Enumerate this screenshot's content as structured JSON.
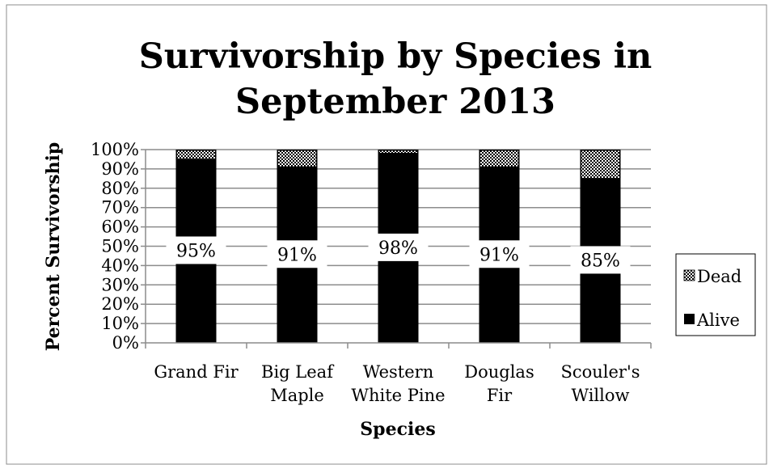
{
  "chart_data": {
    "type": "bar",
    "stacked": true,
    "title": [
      "Survivorship by Species in",
      "September 2013"
    ],
    "xlabel": "Species",
    "ylabel": "Percent Survivorship",
    "ylim": [
      0,
      100
    ],
    "y_ticks": [
      0,
      10,
      20,
      30,
      40,
      50,
      60,
      70,
      80,
      90,
      100
    ],
    "y_tick_labels": [
      "0%",
      "10%",
      "20%",
      "30%",
      "40%",
      "50%",
      "60%",
      "70%",
      "80%",
      "90%",
      "100%"
    ],
    "grid": true,
    "legend_position": "right",
    "categories": [
      [
        "Grand Fir"
      ],
      [
        "Big Leaf",
        "Maple"
      ],
      [
        "Western",
        "White Pine"
      ],
      [
        "Douglas",
        "Fir"
      ],
      [
        "Scouler's",
        "Willow"
      ]
    ],
    "series": [
      {
        "name": "Alive",
        "values": [
          95,
          91,
          98,
          91,
          85
        ],
        "color": "#000000",
        "pattern": "solid",
        "labels": [
          "95%",
          "91%",
          "98%",
          "91%",
          "85%"
        ]
      },
      {
        "name": "Dead",
        "values": [
          5,
          9,
          2,
          9,
          15
        ],
        "color": "#000000",
        "pattern": "checker"
      }
    ]
  }
}
